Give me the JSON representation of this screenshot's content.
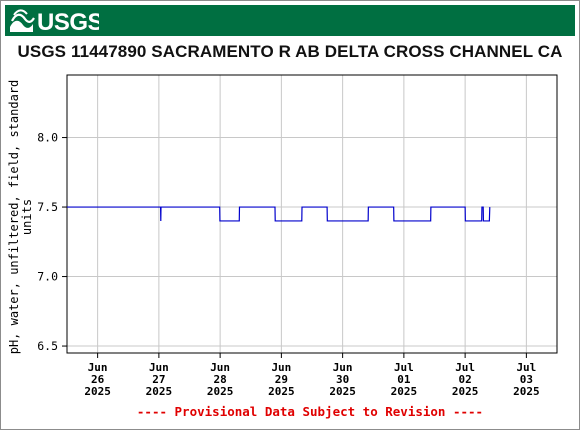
{
  "header": {
    "agency_logo_text": "USGS"
  },
  "chart_data": {
    "type": "line",
    "title": "USGS 11447890 SACRAMENTO R AB DELTA CROSS CHANNEL CA",
    "ylabel": "pH, water, unfiltered, field, standard units",
    "ylabel_lines": [
      "pH, water, unfiltered, field, standard",
      "units"
    ],
    "xlabel": "",
    "ylim": [
      6.45,
      8.45
    ],
    "yticks": [
      6.5,
      7.0,
      7.5,
      8.0
    ],
    "ytick_labels": [
      "6.5",
      "7.0",
      "7.5",
      "8.0"
    ],
    "xlim": [
      "2025-06-25 12:00",
      "2025-07-03 12:00"
    ],
    "xticks": [
      {
        "date": "2025-06-26",
        "lines": [
          "Jun",
          "26",
          "2025"
        ]
      },
      {
        "date": "2025-06-27",
        "lines": [
          "Jun",
          "27",
          "2025"
        ]
      },
      {
        "date": "2025-06-28",
        "lines": [
          "Jun",
          "28",
          "2025"
        ]
      },
      {
        "date": "2025-06-29",
        "lines": [
          "Jun",
          "29",
          "2025"
        ]
      },
      {
        "date": "2025-06-30",
        "lines": [
          "Jun",
          "30",
          "2025"
        ]
      },
      {
        "date": "2025-07-01",
        "lines": [
          "Jul",
          "01",
          "2025"
        ]
      },
      {
        "date": "2025-07-02",
        "lines": [
          "Jul",
          "02",
          "2025"
        ]
      },
      {
        "date": "2025-07-03",
        "lines": [
          "Jul",
          "03",
          "2025"
        ]
      }
    ],
    "grid": true,
    "series": [
      {
        "color": "#0000cc",
        "points": [
          [
            "2025-06-25 12:00",
            7.5
          ],
          [
            "2025-06-27 00:40",
            7.5
          ],
          [
            "2025-06-27 00:45",
            7.4
          ],
          [
            "2025-06-27 00:50",
            7.5
          ],
          [
            "2025-06-27 23:50",
            7.5
          ],
          [
            "2025-06-27 23:55",
            7.4
          ],
          [
            "2025-06-28 07:30",
            7.4
          ],
          [
            "2025-06-28 07:35",
            7.5
          ],
          [
            "2025-06-28 21:30",
            7.5
          ],
          [
            "2025-06-28 21:35",
            7.4
          ],
          [
            "2025-06-29 08:00",
            7.4
          ],
          [
            "2025-06-29 08:05",
            7.5
          ],
          [
            "2025-06-29 17:55",
            7.5
          ],
          [
            "2025-06-29 18:00",
            7.4
          ],
          [
            "2025-06-30 10:00",
            7.4
          ],
          [
            "2025-06-30 10:05",
            7.5
          ],
          [
            "2025-06-30 20:00",
            7.5
          ],
          [
            "2025-06-30 20:05",
            7.4
          ],
          [
            "2025-07-01 10:30",
            7.4
          ],
          [
            "2025-07-01 10:35",
            7.5
          ],
          [
            "2025-07-02 00:00",
            7.5
          ],
          [
            "2025-07-02 00:05",
            7.4
          ],
          [
            "2025-07-02 06:30",
            7.4
          ],
          [
            "2025-07-02 06:35",
            7.5
          ],
          [
            "2025-07-02 07:05",
            7.5
          ],
          [
            "2025-07-02 07:10",
            7.4
          ],
          [
            "2025-07-02 09:30",
            7.4
          ],
          [
            "2025-07-02 09:40",
            7.5
          ]
        ]
      }
    ],
    "footer_note": "---- Provisional Data Subject to Revision ----"
  }
}
